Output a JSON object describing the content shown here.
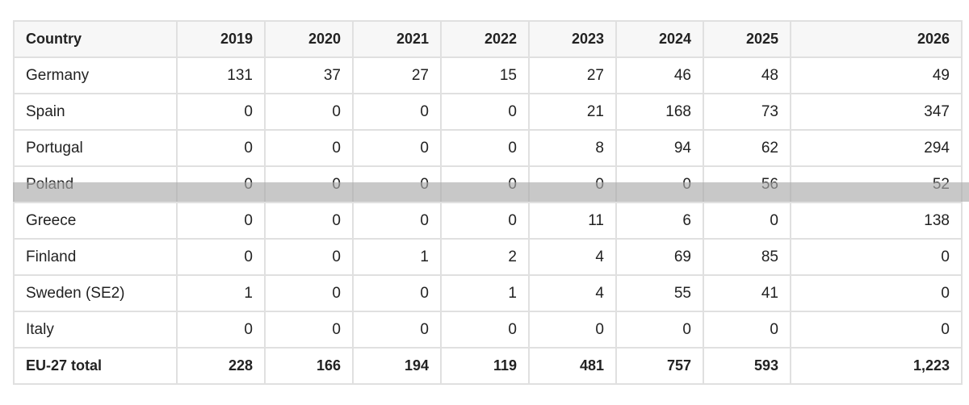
{
  "table": {
    "header": [
      "Country",
      "2019",
      "2020",
      "2021",
      "2022",
      "2023",
      "2024",
      "2025",
      "2026"
    ],
    "rows": [
      [
        "Germany",
        "131",
        "37",
        "27",
        "15",
        "27",
        "46",
        "48",
        "49"
      ],
      [
        "Spain",
        "0",
        "0",
        "0",
        "0",
        "21",
        "168",
        "73",
        "347"
      ],
      [
        "Portugal",
        "0",
        "0",
        "0",
        "0",
        "8",
        "94",
        "62",
        "294"
      ],
      [
        "Poland",
        "0",
        "0",
        "0",
        "0",
        "0",
        "0",
        "56",
        "52"
      ],
      [
        "Greece",
        "0",
        "0",
        "0",
        "0",
        "11",
        "6",
        "0",
        "138"
      ],
      [
        "Finland",
        "0",
        "0",
        "1",
        "2",
        "4",
        "69",
        "85",
        "0"
      ],
      [
        "Sweden (SE2)",
        "1",
        "0",
        "0",
        "1",
        "4",
        "55",
        "41",
        "0"
      ],
      [
        "Italy",
        "0",
        "0",
        "0",
        "0",
        "0",
        "0",
        "0",
        "0"
      ]
    ],
    "total": [
      "EU-27 total",
      "228",
      "166",
      "194",
      "119",
      "481",
      "757",
      "593",
      "1,223"
    ]
  }
}
